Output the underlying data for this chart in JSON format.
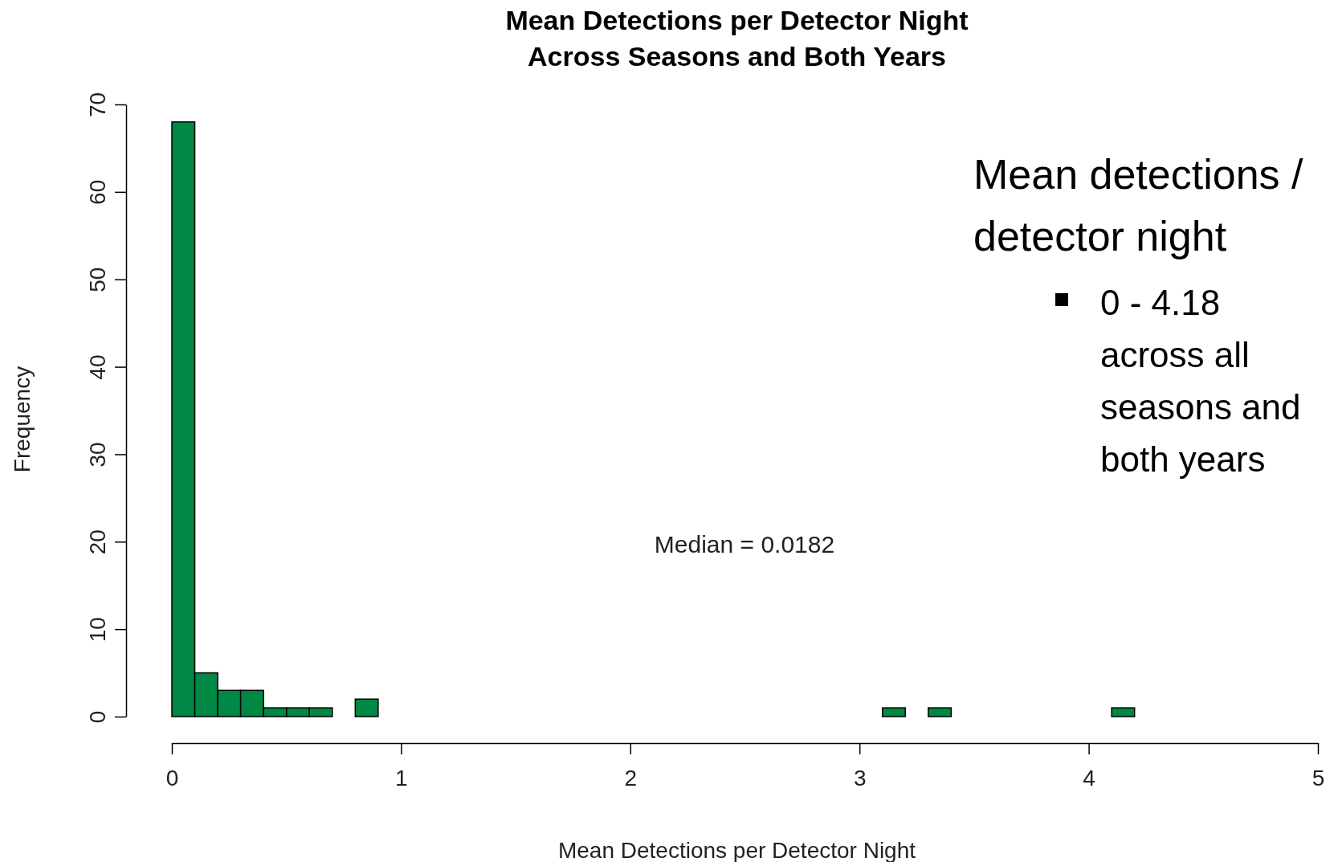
{
  "chart_data": {
    "type": "histogram",
    "title": "Mean Detections per Detector Night\nAcross Seasons and Both Years",
    "xlabel": "Mean Detections per Detector Night",
    "ylabel": "Frequency",
    "bins": [
      0,
      0.1,
      0.2,
      0.3,
      0.4,
      0.5,
      0.6,
      0.7,
      0.8,
      0.9,
      1,
      1.1,
      1.2,
      1.3,
      1.4,
      1.5,
      1.6,
      1.7,
      1.8,
      1.9,
      2,
      2.1,
      2.2,
      2.3,
      2.4,
      2.5,
      2.6,
      2.7,
      2.8,
      2.9,
      3,
      3.1,
      3.2,
      3.3,
      3.4,
      3.5,
      3.6,
      3.7,
      3.8,
      3.9,
      4,
      4.1,
      4.2,
      4.3,
      4.4,
      4.5,
      4.6,
      4.7,
      4.8,
      4.9,
      5
    ],
    "values": [
      68,
      5,
      3,
      3,
      1,
      1,
      1,
      0,
      2,
      0,
      0,
      0,
      0,
      0,
      0,
      0,
      0,
      0,
      0,
      0,
      0,
      0,
      0,
      0,
      0,
      0,
      0,
      0,
      0,
      0,
      0,
      1,
      0,
      1,
      0,
      0,
      0,
      0,
      0,
      0,
      0,
      1,
      0,
      0,
      0,
      0,
      0,
      0,
      0,
      0
    ],
    "color": "#008844",
    "xlim": [
      0,
      5
    ],
    "xticks": [
      0,
      1,
      2,
      3,
      4,
      5
    ],
    "ylim": [
      0,
      70
    ],
    "yticks": [
      0,
      10,
      20,
      30,
      40,
      50,
      60,
      70
    ],
    "annotations": [
      "Median = 0.0182",
      "Mean detections /  detector night",
      "0 - 4.18 across all seasons and both years"
    ]
  }
}
